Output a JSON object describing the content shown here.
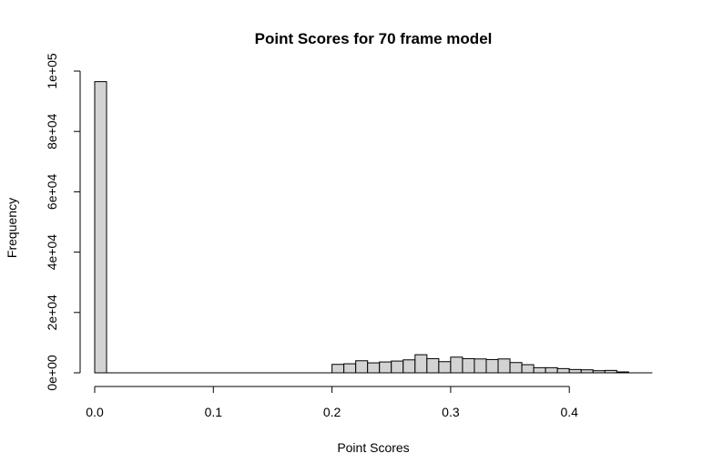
{
  "chart_data": {
    "type": "bar",
    "title": "Point Scores for 70 frame model",
    "xlabel": "Point Scores",
    "ylabel": "Frequency",
    "bin_width": 0.01,
    "xlim": [
      0,
      0.47
    ],
    "ylim": [
      0,
      100000
    ],
    "x_ticks": [
      0.0,
      0.1,
      0.2,
      0.3,
      0.4
    ],
    "x_tick_labels": [
      "0.0",
      "0.1",
      "0.2",
      "0.3",
      "0.4"
    ],
    "y_ticks": [
      0,
      20000,
      40000,
      60000,
      80000,
      100000
    ],
    "y_tick_labels": [
      "0e+00",
      "2e+04",
      "4e+04",
      "6e+04",
      "8e+04",
      "1e+05"
    ],
    "bins": [
      {
        "start": 0.0,
        "end": 0.01,
        "count": 96500
      },
      {
        "start": 0.2,
        "end": 0.21,
        "count": 2800
      },
      {
        "start": 0.21,
        "end": 0.22,
        "count": 3000
      },
      {
        "start": 0.22,
        "end": 0.23,
        "count": 4000
      },
      {
        "start": 0.23,
        "end": 0.24,
        "count": 3300
      },
      {
        "start": 0.24,
        "end": 0.25,
        "count": 3600
      },
      {
        "start": 0.25,
        "end": 0.26,
        "count": 3900
      },
      {
        "start": 0.26,
        "end": 0.27,
        "count": 4300
      },
      {
        "start": 0.27,
        "end": 0.28,
        "count": 6000
      },
      {
        "start": 0.28,
        "end": 0.29,
        "count": 4700
      },
      {
        "start": 0.29,
        "end": 0.3,
        "count": 3700
      },
      {
        "start": 0.3,
        "end": 0.31,
        "count": 5200
      },
      {
        "start": 0.31,
        "end": 0.32,
        "count": 4700
      },
      {
        "start": 0.32,
        "end": 0.33,
        "count": 4600
      },
      {
        "start": 0.33,
        "end": 0.34,
        "count": 4400
      },
      {
        "start": 0.34,
        "end": 0.35,
        "count": 4600
      },
      {
        "start": 0.35,
        "end": 0.36,
        "count": 3400
      },
      {
        "start": 0.36,
        "end": 0.37,
        "count": 2700
      },
      {
        "start": 0.37,
        "end": 0.38,
        "count": 1700
      },
      {
        "start": 0.38,
        "end": 0.39,
        "count": 1700
      },
      {
        "start": 0.39,
        "end": 0.4,
        "count": 1400
      },
      {
        "start": 0.4,
        "end": 0.41,
        "count": 1100
      },
      {
        "start": 0.41,
        "end": 0.42,
        "count": 1000
      },
      {
        "start": 0.42,
        "end": 0.43,
        "count": 700
      },
      {
        "start": 0.43,
        "end": 0.44,
        "count": 800
      },
      {
        "start": 0.44,
        "end": 0.45,
        "count": 300
      }
    ],
    "bar_fill": "#d3d3d3",
    "bar_stroke": "#000000",
    "grid": false,
    "legend": "none"
  }
}
